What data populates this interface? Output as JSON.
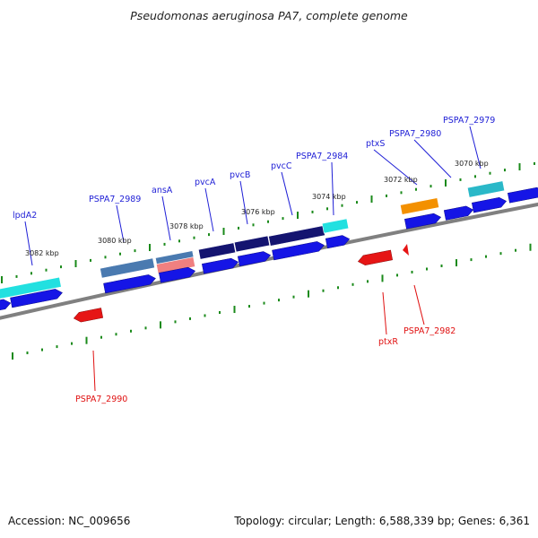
{
  "title": "Pseudomonas aeruginosa PA7, complete genome",
  "footer": {
    "accession": "Accession: NC_009656",
    "summary": "Topology: circular; Length: 6,588,339 bp; Genes: 6,361"
  },
  "colors": {
    "forward": "#1515e6",
    "reverse": "#e61515",
    "tick": "#1a8a1a",
    "backbone": "#808080",
    "navy": "#141470",
    "cyan": "#22e0e0",
    "teal": "#2ab8c8",
    "steel": "#4a7ab0",
    "salmon": "#f08080",
    "orange": "#f39000"
  },
  "scale_labels": [
    "3082 kbp",
    "3080 kbp",
    "3078 kbp",
    "3076 kbp",
    "3074 kbp",
    "3072 kbp",
    "3070 kbp"
  ],
  "gene_labels_forward": [
    "lpdA2",
    "PSPA7_2989",
    "ansA",
    "pvcA",
    "pvcB",
    "pvcC",
    "PSPA7_2984",
    "ptxS",
    "PSPA7_2980",
    "PSPA7_2979"
  ],
  "gene_labels_reverse": [
    "PSPA7_2990",
    "ptxR",
    "PSPA7_2982"
  ]
}
